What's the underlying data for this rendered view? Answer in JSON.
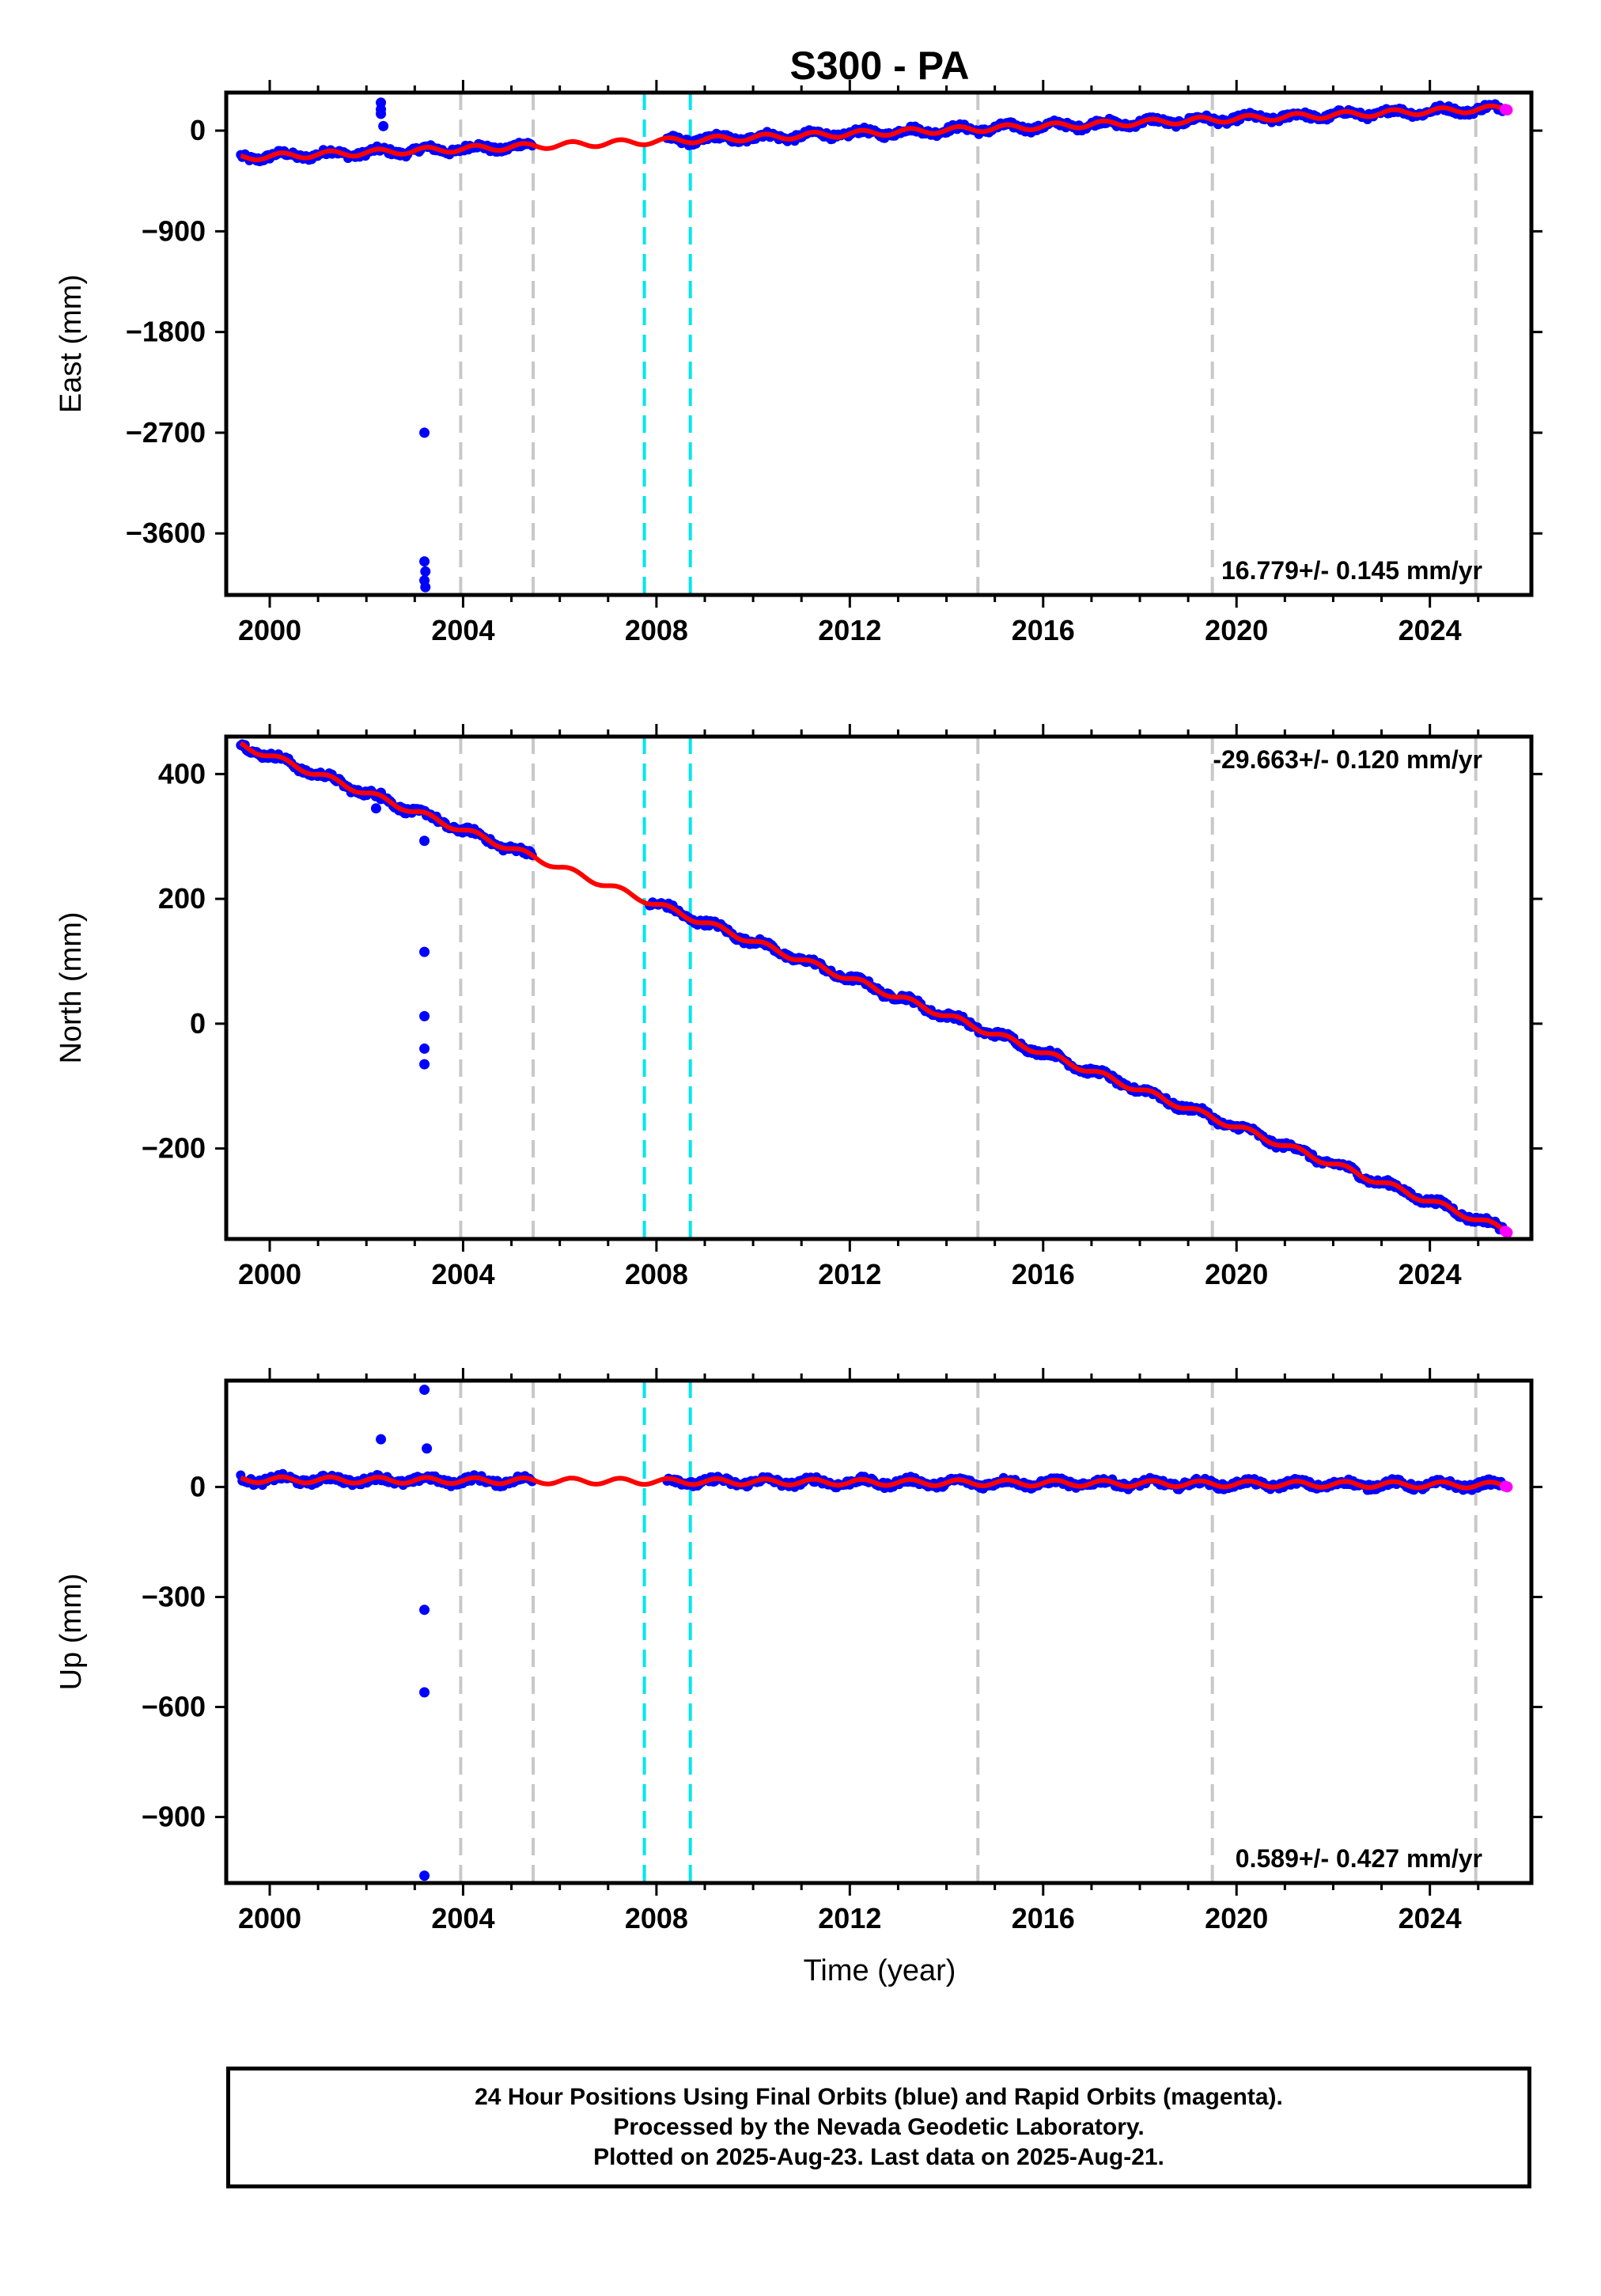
{
  "chart_data": {
    "type": "scatter",
    "title": "S300 - PA",
    "xlabel": "Time (year)",
    "x_ticks": [
      2000,
      2004,
      2008,
      2012,
      2016,
      2020,
      2024
    ],
    "xlim": [
      1999.1,
      2026.1
    ],
    "colors": {
      "final_orbits": "#0000ff",
      "rapid_orbits": "#ff00ff",
      "model": "#ff0000",
      "equipment_change": "#c8c8c8",
      "earthquake": "#00e5ee"
    },
    "vertical_lines": {
      "equipment_change": [
        2003.95,
        2005.45,
        2014.65,
        2019.5,
        2024.95
      ],
      "earthquake": [
        2007.75,
        2008.7
      ]
    },
    "panels": [
      {
        "id": "east",
        "ylabel": "East (mm)",
        "ylim": [
          -4150,
          340
        ],
        "y_ticks": [
          0,
          -900,
          -1800,
          -2700,
          -3600
        ],
        "y_tick_labels": [
          "0",
          "−900",
          "−1800",
          "−2700",
          "−3600"
        ],
        "rate_label": "16.779+/- 0.145 mm/yr",
        "rate_position": "bottom-right",
        "trend": {
          "start": [
            1999.4,
            -240
          ],
          "end": [
            2025.6,
            200
          ]
        },
        "gap": [
          2005.45,
          2008.2
        ],
        "outliers": [
          {
            "x": 2002.3,
            "y": 250
          },
          {
            "x": 2002.3,
            "y": 190
          },
          {
            "x": 2002.3,
            "y": 150
          },
          {
            "x": 2002.35,
            "y": 40
          },
          {
            "x": 2003.2,
            "y": -2700
          },
          {
            "x": 2003.2,
            "y": -3850
          },
          {
            "x": 2003.22,
            "y": -3940
          },
          {
            "x": 2003.2,
            "y": -4020
          },
          {
            "x": 2003.22,
            "y": -4080
          }
        ]
      },
      {
        "id": "north",
        "ylabel": "North (mm)",
        "ylim": [
          -345,
          460
        ],
        "y_ticks": [
          400,
          200,
          0,
          -200
        ],
        "y_tick_labels": [
          "400",
          "200",
          "0",
          "−200"
        ],
        "rate_label": "-29.663+/- 0.120 mm/yr",
        "rate_position": "top-right",
        "trend": {
          "start": [
            1999.4,
            447
          ],
          "end": [
            2025.6,
            -332
          ]
        },
        "gap": [
          2005.45,
          2007.85
        ],
        "outliers": [
          {
            "x": 2002.3,
            "y": 370
          },
          {
            "x": 2002.3,
            "y": 360
          },
          {
            "x": 2002.2,
            "y": 345
          },
          {
            "x": 2003.2,
            "y": 293
          },
          {
            "x": 2003.2,
            "y": 115
          },
          {
            "x": 2003.2,
            "y": 12
          },
          {
            "x": 2003.2,
            "y": -40
          },
          {
            "x": 2003.2,
            "y": -65
          }
        ]
      },
      {
        "id": "up",
        "ylabel": "Up (mm)",
        "ylim": [
          -1080,
          290
        ],
        "y_ticks": [
          0,
          -300,
          -600,
          -900
        ],
        "y_tick_labels": [
          "0",
          "−300",
          "−600",
          "−900"
        ],
        "rate_label": "0.589+/- 0.427 mm/yr",
        "rate_position": "bottom-right",
        "trend": {
          "start": [
            1999.4,
            20
          ],
          "end": [
            2025.6,
            5
          ]
        },
        "gap": [
          2005.45,
          2008.2
        ],
        "outliers": [
          {
            "x": 2003.2,
            "y": 265
          },
          {
            "x": 2002.3,
            "y": 130
          },
          {
            "x": 2003.25,
            "y": 105
          },
          {
            "x": 2003.2,
            "y": -335
          },
          {
            "x": 2003.2,
            "y": -560
          },
          {
            "x": 2003.2,
            "y": -1060
          }
        ]
      }
    ]
  },
  "footer": {
    "line1": "24 Hour Positions Using Final Orbits (blue) and Rapid Orbits (magenta).",
    "line2": "Processed by the Nevada Geodetic Laboratory.",
    "line3": "Plotted on 2025-Aug-23. Last data on 2025-Aug-21."
  }
}
